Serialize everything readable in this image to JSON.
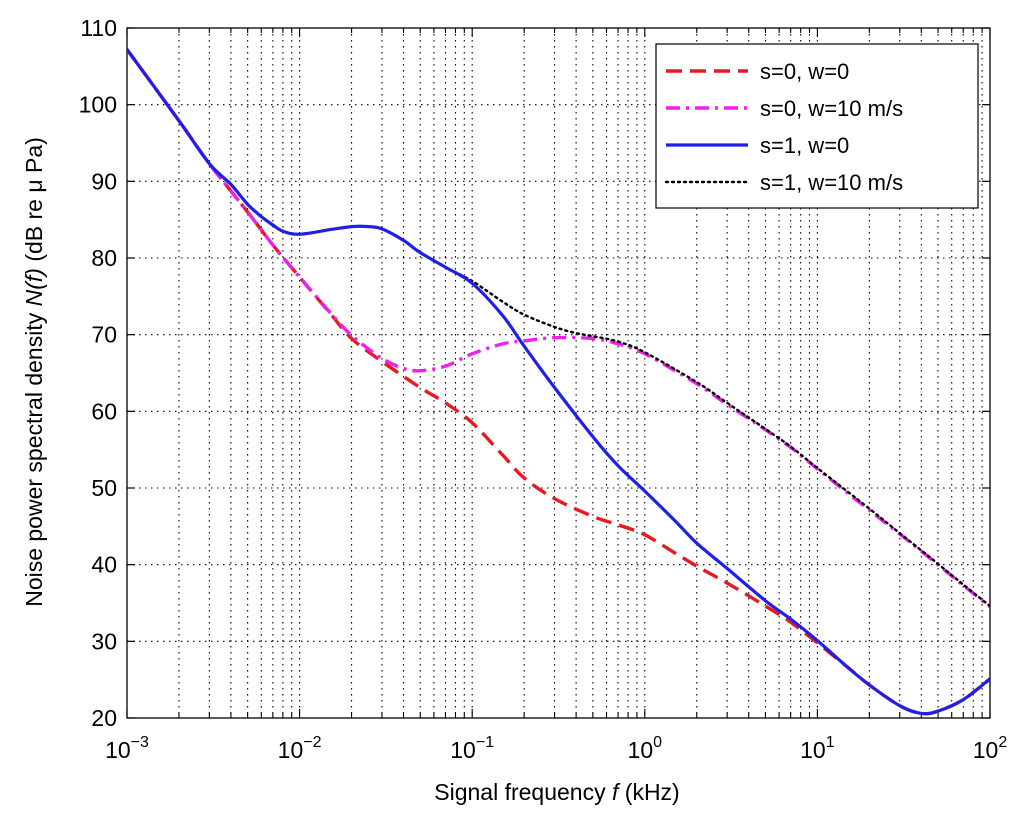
{
  "chart_data": {
    "type": "line",
    "xlabel_prefix": "Signal frequency ",
    "xlabel_var": "f",
    "xlabel_suffix": " (kHz)",
    "ylabel_prefix": "Noise power spectral density ",
    "ylabel_var": "N(f)",
    "ylabel_suffix": " (dB re μ Pa)",
    "x_scale": "log",
    "xlim": [
      0.001,
      100
    ],
    "ylim": [
      20,
      110
    ],
    "x_ticks": [
      {
        "value": 0.001,
        "base": "10",
        "exp": "−3"
      },
      {
        "value": 0.01,
        "base": "10",
        "exp": "−2"
      },
      {
        "value": 0.1,
        "base": "10",
        "exp": "−1"
      },
      {
        "value": 1,
        "base": "10",
        "exp": "0"
      },
      {
        "value": 10,
        "base": "10",
        "exp": "1"
      },
      {
        "value": 100,
        "base": "10",
        "exp": "2"
      }
    ],
    "y_ticks": [
      "20",
      "30",
      "40",
      "50",
      "60",
      "70",
      "80",
      "90",
      "100",
      "110"
    ],
    "grid": true,
    "legend_position": "top-right",
    "series": [
      {
        "name": "s=0, w=0",
        "color": "#e8191f",
        "style": "dashed",
        "x": [
          0.001,
          0.002,
          0.003,
          0.005,
          0.007,
          0.01,
          0.015,
          0.02,
          0.03,
          0.05,
          0.07,
          0.1,
          0.15,
          0.2,
          0.3,
          0.5,
          0.7,
          1,
          1.5,
          2,
          3,
          5,
          7,
          10,
          15,
          20,
          30,
          40,
          50,
          70,
          100
        ],
        "y": [
          107.2,
          97.9,
          92.3,
          86,
          81.7,
          77.5,
          72.8,
          69.5,
          66.5,
          63.1,
          61.1,
          58.5,
          54.3,
          51.3,
          48.6,
          46.3,
          45.2,
          43.9,
          41.5,
          39.8,
          37.6,
          34.6,
          32.5,
          29.8,
          26.6,
          24.3,
          21.6,
          20.6,
          20.9,
          22.4,
          25.1
        ]
      },
      {
        "name": "s=0, w=10 m/s",
        "color": "#f01ef0",
        "style": "dashdot",
        "x": [
          0.001,
          0.002,
          0.003,
          0.005,
          0.007,
          0.01,
          0.015,
          0.02,
          0.03,
          0.04,
          0.05,
          0.07,
          0.1,
          0.15,
          0.2,
          0.3,
          0.5,
          0.7,
          1,
          2,
          3,
          5,
          7,
          10,
          20,
          30,
          50,
          70,
          100
        ],
        "y": [
          107.2,
          97.9,
          92.3,
          86,
          81.7,
          77.5,
          72.9,
          69.9,
          66.9,
          65.6,
          65.3,
          65.9,
          67.5,
          68.8,
          69.2,
          69.6,
          69.5,
          68.8,
          67.5,
          63.6,
          60.9,
          57.6,
          55.3,
          52.5,
          47.1,
          44,
          40,
          37.3,
          34.5
        ]
      },
      {
        "name": "s=1, w=0",
        "color": "#1f1fe8",
        "style": "solid",
        "x": [
          0.001,
          0.002,
          0.003,
          0.004,
          0.005,
          0.006,
          0.007,
          0.008,
          0.01,
          0.015,
          0.02,
          0.025,
          0.03,
          0.04,
          0.05,
          0.07,
          0.1,
          0.15,
          0.2,
          0.3,
          0.5,
          0.7,
          1,
          1.5,
          2,
          3,
          5,
          7,
          10,
          15,
          20,
          30,
          40,
          50,
          70,
          100
        ],
        "y": [
          107.2,
          97.9,
          92.3,
          89.6,
          87,
          85.4,
          84.3,
          83.5,
          83.1,
          83.7,
          84.1,
          84.1,
          83.8,
          82.3,
          80.7,
          78.8,
          76.7,
          72.5,
          68.5,
          63.1,
          56.7,
          52.9,
          49.6,
          45.7,
          42.8,
          39.5,
          35.3,
          32.9,
          30.1,
          26.6,
          24.3,
          21.6,
          20.6,
          20.9,
          22.4,
          25.1
        ]
      },
      {
        "name": "s=1, w=10 m/s",
        "color": "#000000",
        "style": "dotted",
        "x": [
          0.001,
          0.002,
          0.003,
          0.004,
          0.005,
          0.006,
          0.007,
          0.008,
          0.01,
          0.015,
          0.02,
          0.025,
          0.03,
          0.04,
          0.05,
          0.07,
          0.1,
          0.15,
          0.2,
          0.3,
          0.4,
          0.5,
          0.7,
          1,
          2,
          3,
          5,
          7,
          10,
          20,
          30,
          50,
          70,
          100
        ],
        "y": [
          107.2,
          97.9,
          92.3,
          89.6,
          87,
          85.4,
          84.3,
          83.5,
          83.1,
          83.7,
          84.1,
          84.1,
          83.8,
          82.3,
          80.7,
          78.8,
          77,
          74.3,
          72.6,
          71,
          70.2,
          69.8,
          69.1,
          67.7,
          63.8,
          61.1,
          57.7,
          55.4,
          52.6,
          47.3,
          44.1,
          40.1,
          37.4,
          34.6
        ]
      }
    ]
  }
}
